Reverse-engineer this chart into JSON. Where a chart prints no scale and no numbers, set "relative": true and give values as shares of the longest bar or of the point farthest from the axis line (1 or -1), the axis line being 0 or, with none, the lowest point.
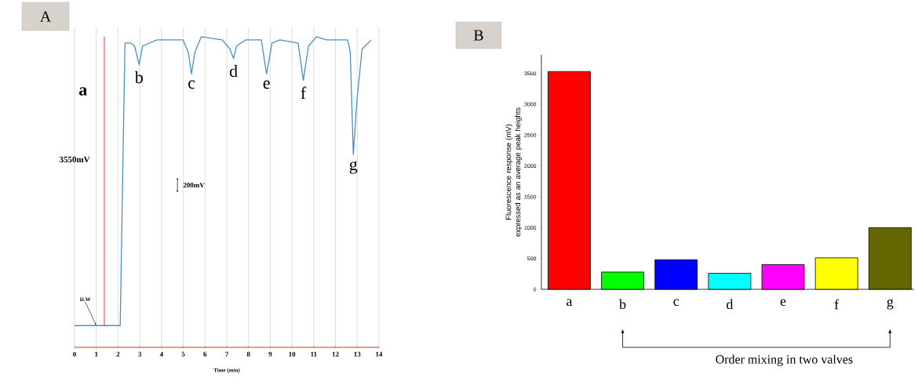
{
  "chart_data": [
    {
      "type": "line",
      "title": "A",
      "xlabel": "Time (min)",
      "relative": true,
      "color": "#4a90c8",
      "grid": "x",
      "x": [
        0,
        2.1,
        2.23,
        2.32,
        2.58,
        2.76,
        2.97,
        3.13,
        3.79,
        4.03,
        4.99,
        5.23,
        5.38,
        5.53,
        5.83,
        6.79,
        7.15,
        7.31,
        7.45,
        7.87,
        8.59,
        8.83,
        9.08,
        9.44,
        10.28,
        10.52,
        10.76,
        11.12,
        11.6,
        12.56,
        12.68,
        12.82,
        12.98,
        13.22,
        13.64
      ],
      "values": [
        0.07,
        0.07,
        0.62,
        0.98,
        0.98,
        0.97,
        0.91,
        0.97,
        0.99,
        0.99,
        0.99,
        0.95,
        0.88,
        0.95,
        1.0,
        0.99,
        0.96,
        0.93,
        0.97,
        0.99,
        0.99,
        0.88,
        0.98,
        0.99,
        0.98,
        0.86,
        0.97,
        1.0,
        0.99,
        0.99,
        0.95,
        0.62,
        0.79,
        0.96,
        0.99
      ],
      "xlim": [
        0,
        14
      ],
      "xticks": [
        0,
        1,
        2,
        3,
        4,
        5,
        6,
        7,
        8,
        9,
        10,
        11,
        12,
        13,
        14
      ],
      "ref_lines": [
        {
          "axis": "x",
          "value": 1.37,
          "label": "3550mV",
          "color": "#cc0000"
        }
      ],
      "annotations": [
        "a",
        "200mV",
        {
          "text": "D.W",
          "x": 1,
          "y": 0.07
        },
        {
          "text": "b",
          "x": 2.97,
          "y": 0.91
        },
        {
          "text": "c",
          "x": 5.38,
          "y": 0.88
        },
        {
          "text": "d",
          "x": 7.31,
          "y": 0.93
        },
        {
          "text": "e",
          "x": 8.83,
          "y": 0.88
        },
        {
          "text": "f",
          "x": 10.52,
          "y": 0.86
        },
        {
          "text": "g",
          "x": 12.82,
          "y": 0.62
        }
      ]
    },
    {
      "type": "bar",
      "title": "B",
      "ylabel": "Fluorescence response (mV) expressed as an average peak heights",
      "categories": [
        "a",
        "b",
        "c",
        "d",
        "e",
        "f",
        "g"
      ],
      "values": [
        3530,
        280,
        480,
        260,
        400,
        510,
        1000
      ],
      "colors": [
        "#ff0000",
        "#00ff00",
        "#0000ff",
        "#00ffff",
        "#ff00ff",
        "#ffff00",
        "#666600"
      ],
      "ylim": [
        0,
        3800
      ],
      "yticks": [
        0,
        500,
        1000,
        1500,
        2000,
        2500,
        3000,
        3500
      ],
      "annotations": [
        "Order mixing in two valves"
      ]
    }
  ]
}
